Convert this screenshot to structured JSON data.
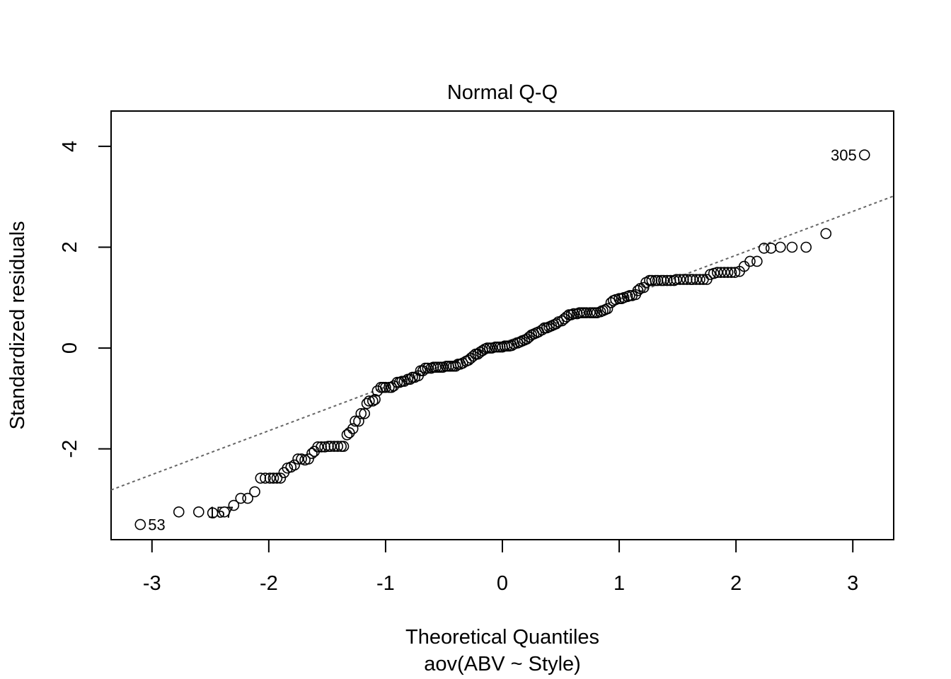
{
  "chart_data": {
    "type": "scatter",
    "title": "Normal Q-Q",
    "xlabel": "Theoretical Quantiles",
    "subtitle": "aov(ABV ~ Style)",
    "ylabel": "Standardized residuals",
    "xlim": [
      -3.35,
      3.35
    ],
    "ylim": [
      -3.8,
      4.7
    ],
    "x_ticks": [
      -3,
      -2,
      -1,
      0,
      1,
      2,
      3
    ],
    "y_ticks": [
      -2,
      0,
      2,
      4
    ],
    "x_tick_labels": [
      "-3",
      "-2",
      "-1",
      "0",
      "1",
      "2",
      "3"
    ],
    "y_tick_labels": [
      "-2",
      "0",
      "2",
      "4"
    ],
    "grid": false,
    "reference_line": {
      "slope": 0.87,
      "intercept": 0.1
    },
    "extreme_points": [
      {
        "x": -3.1,
        "y": -3.5,
        "label": "53"
      },
      {
        "x": -2.59,
        "y": -3.25,
        "label": "157"
      },
      {
        "x": 3.1,
        "y": 3.83,
        "label": "305"
      }
    ],
    "points": [
      [
        -3.1,
        -3.5
      ],
      [
        -2.77,
        -3.25
      ],
      [
        -2.6,
        -3.25
      ],
      [
        -2.48,
        -3.27
      ],
      [
        -2.38,
        -3.25
      ],
      [
        -2.3,
        -3.12
      ],
      [
        -2.24,
        -2.98
      ],
      [
        -2.18,
        -2.98
      ],
      [
        -2.12,
        -2.85
      ],
      [
        -2.07,
        -2.58
      ],
      [
        -2.03,
        -2.58
      ],
      [
        -1.99,
        -2.58
      ],
      [
        -1.96,
        -2.58
      ],
      [
        -1.93,
        -2.58
      ],
      [
        -1.9,
        -2.58
      ],
      [
        -1.87,
        -2.47
      ],
      [
        -1.84,
        -2.38
      ],
      [
        -1.81,
        -2.36
      ],
      [
        -1.78,
        -2.32
      ],
      [
        -1.75,
        -2.2
      ],
      [
        -1.72,
        -2.2
      ],
      [
        -1.69,
        -2.22
      ],
      [
        -1.66,
        -2.2
      ],
      [
        -1.63,
        -2.09
      ],
      [
        -1.61,
        -2.05
      ],
      [
        -1.58,
        -1.96
      ],
      [
        -1.55,
        -1.96
      ],
      [
        -1.52,
        -1.96
      ],
      [
        -1.49,
        -1.95
      ],
      [
        -1.47,
        -1.95
      ],
      [
        -1.44,
        -1.95
      ],
      [
        -1.41,
        -1.95
      ],
      [
        -1.38,
        -1.95
      ],
      [
        -1.36,
        -1.95
      ],
      [
        -1.33,
        -1.72
      ],
      [
        -1.31,
        -1.68
      ],
      [
        -1.28,
        -1.6
      ],
      [
        -1.26,
        -1.45
      ],
      [
        -1.23,
        -1.45
      ],
      [
        -1.21,
        -1.3
      ],
      [
        -1.18,
        -1.3
      ],
      [
        -1.16,
        -1.1
      ],
      [
        -1.14,
        -1.05
      ],
      [
        -1.11,
        -1.05
      ],
      [
        -1.09,
        -1.02
      ],
      [
        -1.07,
        -0.85
      ],
      [
        -1.04,
        -0.78
      ],
      [
        -1.02,
        -0.78
      ],
      [
        -1.0,
        -0.78
      ],
      [
        -0.97,
        -0.78
      ],
      [
        -0.95,
        -0.78
      ],
      [
        -0.93,
        -0.75
      ],
      [
        -0.9,
        -0.68
      ],
      [
        -0.88,
        -0.68
      ],
      [
        -0.86,
        -0.66
      ],
      [
        -0.84,
        -0.66
      ],
      [
        -0.81,
        -0.62
      ],
      [
        -0.79,
        -0.62
      ],
      [
        -0.77,
        -0.58
      ],
      [
        -0.75,
        -0.58
      ],
      [
        -0.72,
        -0.55
      ],
      [
        -0.7,
        -0.45
      ],
      [
        -0.68,
        -0.45
      ],
      [
        -0.66,
        -0.4
      ],
      [
        -0.64,
        -0.4
      ],
      [
        -0.61,
        -0.4
      ],
      [
        -0.59,
        -0.38
      ],
      [
        -0.57,
        -0.38
      ],
      [
        -0.55,
        -0.38
      ],
      [
        -0.53,
        -0.38
      ],
      [
        -0.51,
        -0.38
      ],
      [
        -0.48,
        -0.36
      ],
      [
        -0.46,
        -0.36
      ],
      [
        -0.44,
        -0.36
      ],
      [
        -0.42,
        -0.36
      ],
      [
        -0.4,
        -0.36
      ],
      [
        -0.38,
        -0.32
      ],
      [
        -0.36,
        -0.32
      ],
      [
        -0.34,
        -0.3
      ],
      [
        -0.31,
        -0.26
      ],
      [
        -0.29,
        -0.24
      ],
      [
        -0.27,
        -0.2
      ],
      [
        -0.25,
        -0.16
      ],
      [
        -0.23,
        -0.12
      ],
      [
        -0.21,
        -0.12
      ],
      [
        -0.19,
        -0.08
      ],
      [
        -0.17,
        -0.05
      ],
      [
        -0.15,
        -0.02
      ],
      [
        -0.13,
        0.0
      ],
      [
        -0.11,
        0.0
      ],
      [
        -0.09,
        0.0
      ],
      [
        -0.06,
        0.02
      ],
      [
        -0.04,
        0.02
      ],
      [
        -0.02,
        0.02
      ],
      [
        0.0,
        0.02
      ],
      [
        0.02,
        0.04
      ],
      [
        0.04,
        0.04
      ],
      [
        0.06,
        0.04
      ],
      [
        0.08,
        0.05
      ],
      [
        0.1,
        0.08
      ],
      [
        0.13,
        0.1
      ],
      [
        0.15,
        0.12
      ],
      [
        0.17,
        0.14
      ],
      [
        0.19,
        0.16
      ],
      [
        0.21,
        0.18
      ],
      [
        0.23,
        0.22
      ],
      [
        0.25,
        0.26
      ],
      [
        0.27,
        0.28
      ],
      [
        0.29,
        0.3
      ],
      [
        0.31,
        0.32
      ],
      [
        0.34,
        0.36
      ],
      [
        0.36,
        0.4
      ],
      [
        0.38,
        0.4
      ],
      [
        0.4,
        0.42
      ],
      [
        0.42,
        0.44
      ],
      [
        0.44,
        0.46
      ],
      [
        0.46,
        0.48
      ],
      [
        0.48,
        0.52
      ],
      [
        0.51,
        0.54
      ],
      [
        0.53,
        0.58
      ],
      [
        0.55,
        0.62
      ],
      [
        0.57,
        0.66
      ],
      [
        0.59,
        0.66
      ],
      [
        0.61,
        0.68
      ],
      [
        0.64,
        0.68
      ],
      [
        0.66,
        0.7
      ],
      [
        0.68,
        0.7
      ],
      [
        0.7,
        0.7
      ],
      [
        0.72,
        0.7
      ],
      [
        0.75,
        0.7
      ],
      [
        0.77,
        0.7
      ],
      [
        0.79,
        0.7
      ],
      [
        0.81,
        0.7
      ],
      [
        0.84,
        0.72
      ],
      [
        0.86,
        0.74
      ],
      [
        0.88,
        0.76
      ],
      [
        0.9,
        0.78
      ],
      [
        0.93,
        0.9
      ],
      [
        0.95,
        0.94
      ],
      [
        0.97,
        0.96
      ],
      [
        1.0,
        0.98
      ],
      [
        1.02,
        0.98
      ],
      [
        1.04,
        1.0
      ],
      [
        1.07,
        1.02
      ],
      [
        1.09,
        1.04
      ],
      [
        1.11,
        1.04
      ],
      [
        1.14,
        1.06
      ],
      [
        1.16,
        1.14
      ],
      [
        1.18,
        1.18
      ],
      [
        1.21,
        1.2
      ],
      [
        1.23,
        1.3
      ],
      [
        1.26,
        1.34
      ],
      [
        1.28,
        1.34
      ],
      [
        1.31,
        1.34
      ],
      [
        1.33,
        1.34
      ],
      [
        1.36,
        1.34
      ],
      [
        1.38,
        1.34
      ],
      [
        1.41,
        1.34
      ],
      [
        1.44,
        1.34
      ],
      [
        1.47,
        1.34
      ],
      [
        1.49,
        1.36
      ],
      [
        1.52,
        1.36
      ],
      [
        1.55,
        1.36
      ],
      [
        1.58,
        1.36
      ],
      [
        1.61,
        1.36
      ],
      [
        1.63,
        1.36
      ],
      [
        1.66,
        1.36
      ],
      [
        1.69,
        1.36
      ],
      [
        1.72,
        1.36
      ],
      [
        1.75,
        1.36
      ],
      [
        1.78,
        1.46
      ],
      [
        1.81,
        1.48
      ],
      [
        1.84,
        1.5
      ],
      [
        1.87,
        1.5
      ],
      [
        1.9,
        1.5
      ],
      [
        1.93,
        1.5
      ],
      [
        1.96,
        1.5
      ],
      [
        1.99,
        1.5
      ],
      [
        2.03,
        1.52
      ],
      [
        2.07,
        1.62
      ],
      [
        2.12,
        1.72
      ],
      [
        2.18,
        1.72
      ],
      [
        2.24,
        1.98
      ],
      [
        2.3,
        1.98
      ],
      [
        2.38,
        2.0
      ],
      [
        2.48,
        2.0
      ],
      [
        2.6,
        2.0
      ],
      [
        2.77,
        2.27
      ],
      [
        3.1,
        3.83
      ]
    ]
  }
}
